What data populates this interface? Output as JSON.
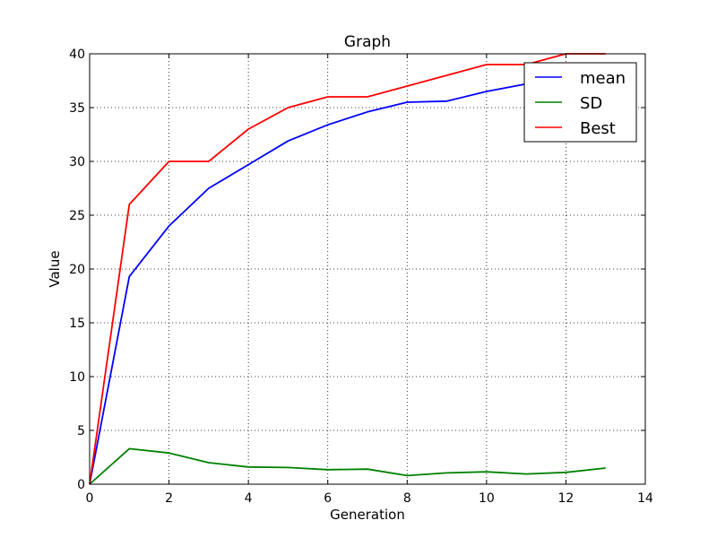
{
  "chart_data": {
    "type": "line",
    "title": "Graph",
    "xlabel": "Generation",
    "ylabel": "Value",
    "xlim": [
      0,
      14
    ],
    "ylim": [
      0,
      40
    ],
    "xticks": [
      0,
      2,
      4,
      6,
      8,
      10,
      12,
      14
    ],
    "yticks": [
      0,
      5,
      10,
      15,
      20,
      25,
      30,
      35,
      40
    ],
    "grid": true,
    "legend_position": "top-right",
    "x": [
      0,
      1,
      2,
      3,
      4,
      5,
      6,
      7,
      8,
      9,
      10,
      11,
      12,
      13
    ],
    "series": [
      {
        "name": "mean",
        "color": "#0000ff",
        "values": [
          0,
          19.3,
          24.0,
          27.5,
          29.7,
          31.9,
          33.4,
          34.6,
          35.5,
          35.6,
          36.5,
          37.2,
          37.9,
          38.3
        ]
      },
      {
        "name": "SD",
        "color": "#008000",
        "values": [
          0,
          3.3,
          2.9,
          2.0,
          1.6,
          1.55,
          1.35,
          1.4,
          0.8,
          1.05,
          1.15,
          0.95,
          1.1,
          1.5
        ]
      },
      {
        "name": "Best",
        "color": "#ff0000",
        "values": [
          0,
          26,
          30,
          30,
          33,
          35,
          36,
          36,
          37,
          38,
          39,
          39,
          40,
          40
        ]
      }
    ]
  }
}
